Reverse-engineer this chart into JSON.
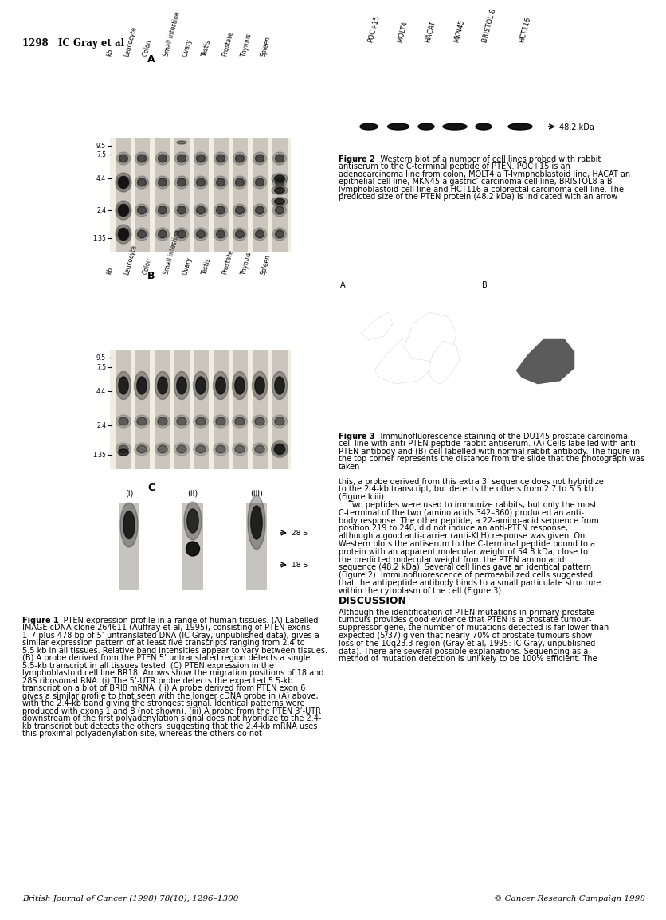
{
  "page_header": "1298   IC Gray et al",
  "tissue_labels": [
    "kb",
    "Leucocyte",
    "Colon",
    "Small intestine",
    "Ovary",
    "Testis",
    "Prostate",
    "Thymus",
    "Spleen"
  ],
  "kb_markers_AB": [
    "9.5",
    "7.5",
    "4.4",
    "2.4",
    "1.35"
  ],
  "western_labels": [
    "POC+15",
    "MOLT4",
    "HACAT",
    "MKN45",
    "BRISTOL 8",
    "HCT116"
  ],
  "western_arrow_label": "48.2 kDa",
  "panel_C_sublabels": [
    "(i)",
    "(ii)",
    "(iii)"
  ],
  "rna_markers": [
    "28 S",
    "18 S"
  ],
  "fig1_lines": [
    "Figure 1    PTEN expression profile in a range of human tissues. (A) Labelled",
    "IMAGE cDNA clone 264611 (Auffray et al, 1995), consisting of PTEN exons",
    "1–7 plus 478 bp of 5’ untranslated DNA (IC Gray, unpublished data), gives a",
    "similar expression pattern of at least five transcripts ranging from 2.4 to",
    "5.5 kb in all tissues. Relative band intensities appear to vary between tissues.",
    "(B) A probe derived from the PTEN 5’ untranslated region detects a single",
    "5.5-kb transcript in all tissues tested. (C) PTEN expression in the",
    "lymphoblastoid cell line BR18. Arrows show the migration positions of 18 and",
    "28S ribosomal RNA. (i) The 5’-UTR probe detects the expected 5.5-kb",
    "transcript on a blot of BRI8 mRNA. (ii) A probe derived from PTEN exon 6",
    "gives a similar profile to that seen with the longer cDNA probe in (A) above,",
    "with the 2.4-kb band giving the strongest signal. Identical patterns were",
    "produced with exons 1 and 8 (not shown). (iii) A probe from the PTEN 3’-UTR",
    "downstream of the first polyadenylation signal does not hybridize to the 2.4-",
    "kb transcript but detects the others, suggesting that the 2.4-kb mRNA uses",
    "this proximal polyadenylation site, whereas the others do not"
  ],
  "fig2_lines": [
    "Figure 2    Western blot of a number of cell lines probed with rabbit",
    "antiserum to the C-terminal peptide of PTEN. POC+15 is an",
    "adenocarcinoma line from colon, MOLT4 a T-lymphoblastoid line, HACAT an",
    "epithelial cell line, MKN45 a gastric’ carcinoma cell line, BRISTOL8 a B-",
    "lymphoblastoid cell line and HCT116 a colorectal carcinoma cell line. The",
    "predicted size of the PTEN protein (48.2 kDa) is indicated with an arrow"
  ],
  "fig3_lines": [
    "Figure 3    Immunofluorescence staining of the DU145 prostate carcinoma",
    "cell line with anti-PTEN peptide rabbit antiserum. (A) Cells labelled with anti-",
    "PTEN antibody and (B) cell labelled with normal rabbit antibody. The figure in",
    "the top corner represents the distance from the slide that the photograph was",
    "taken"
  ],
  "body_right_lines": [
    "this, a probe derived from this extra 3’ sequence does not hybridize",
    "to the 2.4-kb transcript, but detects the others from 2.7 to 5.5 kb",
    "(Figure Iciii).",
    "    Two peptides were used to immunize rabbits, but only the most",
    "C-terminal of the two (amino acids 342–360) produced an anti-",
    "body response. The other peptide, a 22-amino-acid sequence from",
    "position 219 to 240, did not induce an anti-PTEN response,",
    "although a good anti-carrier (anti-KLH) response was given. On",
    "Western blots the antiserum to the C-terminal peptide bound to a",
    "protein with an apparent molecular weight of 54.8 kDa, close to",
    "the predicted molecular weight from the PTEN amino acid",
    "sequence (48.2 kDa). Several cell lines gave an identical pattern",
    "(Figure 2). Immunofluorescence of permeabilized cells suggested",
    "that the antipeptide antibody binds to a small particulate structure",
    "within the cytoplasm of the cell (Figure 3)."
  ],
  "disc_lines": [
    "Although the identification of PTEN mutations in primary prostate",
    "tumours provides good evidence that PTEN is a prostate tumour-",
    "suppressor gene, the number of mutations detected is far lower than",
    "expected (5/37) given that nearly 70% of prostate tumours show",
    "loss of the 10q23.3 region (Gray et al, 1995: IC Gray, unpublished",
    "data). There are several possible explanations. Sequencing as a",
    "method of mutation detection is unlikely to be 100% efficient. The"
  ],
  "journal_footer_left": "British Journal of Cancer (1998) 78(10), 1296–1300",
  "journal_footer_right": "© Cancer Research Campaign 1998",
  "bg_color": "#ffffff"
}
